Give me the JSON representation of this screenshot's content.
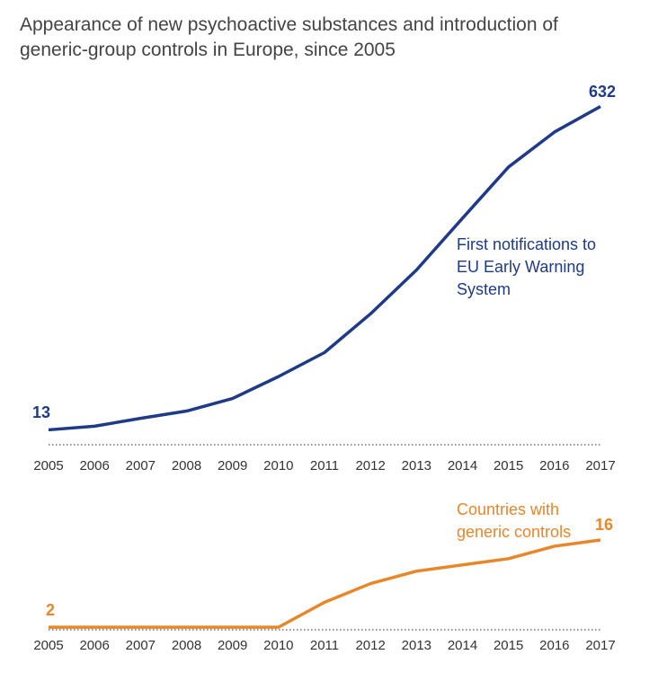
{
  "title": "Appearance of new psychoactive substances and introduction of generic-group controls in Europe, since 2005",
  "chart_data": [
    {
      "type": "line",
      "categories": [
        "2005",
        "2006",
        "2007",
        "2008",
        "2009",
        "2010",
        "2011",
        "2012",
        "2013",
        "2014",
        "2015",
        "2016",
        "2017"
      ],
      "series": [
        {
          "name": "First notifications to EU Early Warning System",
          "color": "#1f3a86",
          "values": [
            13,
            20,
            35,
            49,
            73,
            115,
            161,
            235,
            319,
            418,
            516,
            583,
            632
          ]
        }
      ],
      "ylim": [
        0,
        650
      ]
    },
    {
      "type": "line",
      "categories": [
        "2005",
        "2006",
        "2007",
        "2008",
        "2009",
        "2010",
        "2011",
        "2012",
        "2013",
        "2014",
        "2015",
        "2016",
        "2017"
      ],
      "series": [
        {
          "name": "Countries with generic controls",
          "color": "#e8862a",
          "values": [
            2,
            2,
            2,
            2,
            2,
            2,
            6,
            9,
            11,
            12,
            13,
            15,
            16
          ]
        }
      ],
      "ylim": [
        0,
        16
      ]
    }
  ]
}
